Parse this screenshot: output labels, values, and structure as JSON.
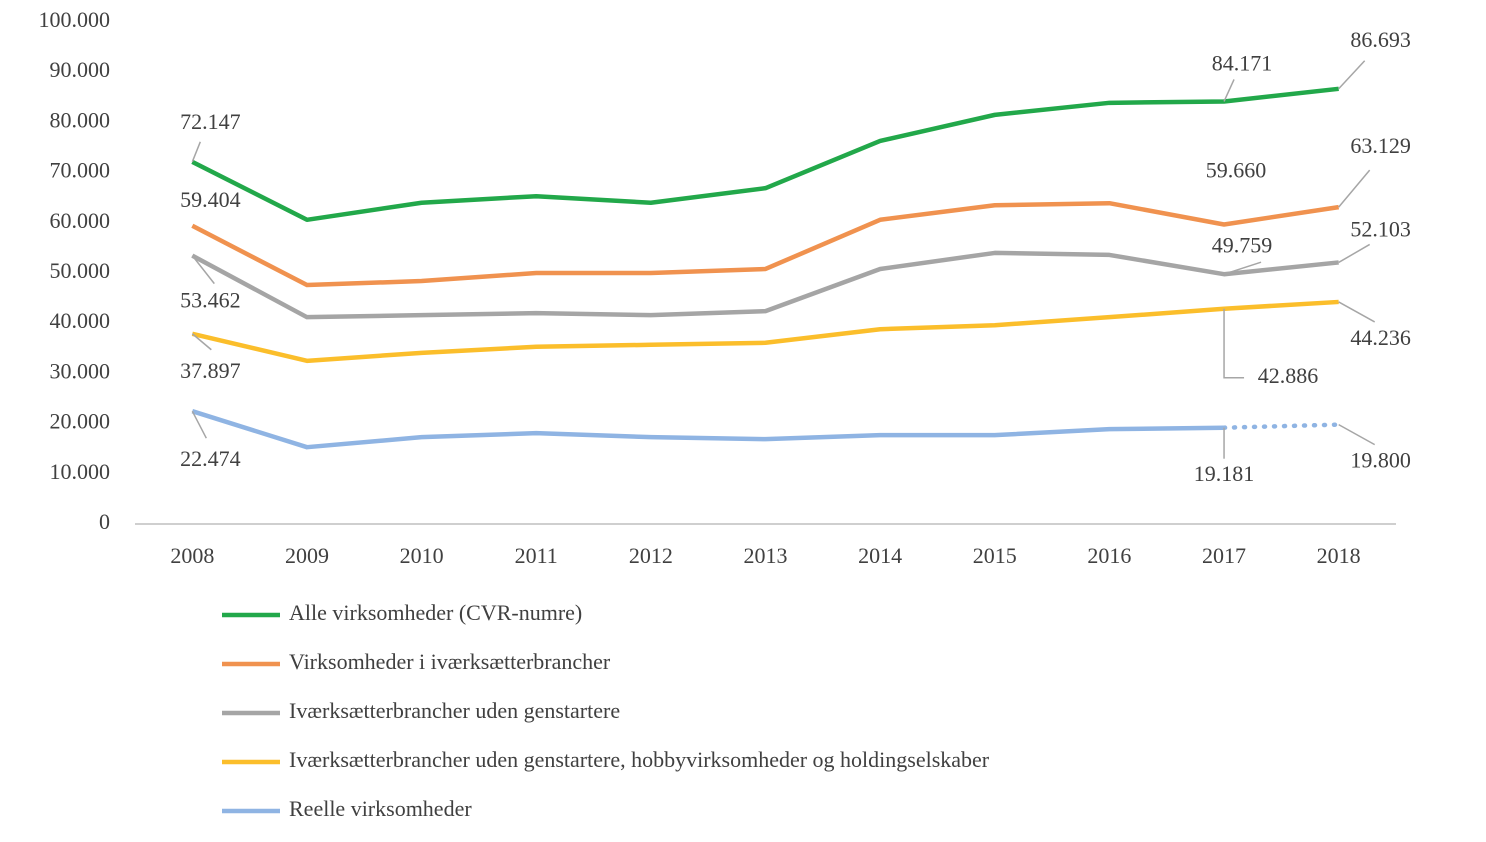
{
  "chart_data": {
    "type": "line",
    "categories": [
      "2008",
      "2009",
      "2010",
      "2011",
      "2012",
      "2013",
      "2014",
      "2015",
      "2016",
      "2017",
      "2018"
    ],
    "ylim": [
      0,
      100000
    ],
    "yticks": [
      0,
      {
        "value": 10000,
        "label": "10.000"
      },
      {
        "value": 20000,
        "label": "20.000"
      },
      {
        "value": 30000,
        "label": "30.000"
      },
      {
        "value": 40000,
        "label": "40.000"
      },
      {
        "value": 50000,
        "label": "50.000"
      },
      {
        "value": 60000,
        "label": "60.000"
      },
      {
        "value": 70000,
        "label": "70.000"
      },
      {
        "value": 80000,
        "label": "80.000"
      },
      {
        "value": 90000,
        "label": "90.000"
      },
      {
        "value": 100000,
        "label": "100.000"
      }
    ],
    "grid": false,
    "legend": "bottom",
    "series": [
      {
        "name": "Alle virksomheder (CVR-numre)",
        "color": "#22a84a",
        "values": [
          72147,
          60600,
          64000,
          65300,
          64000,
          66900,
          76300,
          81500,
          83900,
          84171,
          86693
        ],
        "value_labels": [
          "72.147",
          null,
          null,
          null,
          null,
          null,
          null,
          null,
          null,
          "84.171",
          "86.693"
        ]
      },
      {
        "name": "Virksomheder i iværksætterbrancher",
        "color": "#f0924f",
        "values": [
          59404,
          47600,
          48400,
          50000,
          50000,
          50800,
          60600,
          63500,
          63900,
          59660,
          63129
        ],
        "value_labels": [
          "59.404",
          null,
          null,
          null,
          null,
          null,
          null,
          null,
          null,
          "59.660",
          "63.129"
        ]
      },
      {
        "name": "Iværksætterbrancher uden genstartere",
        "color": "#a5a5a5",
        "values": [
          53462,
          41200,
          41600,
          42000,
          41600,
          42400,
          50800,
          54000,
          53600,
          49759,
          52103
        ],
        "value_labels": [
          "53.462",
          null,
          null,
          null,
          null,
          null,
          null,
          null,
          null,
          "49.759",
          "52.103"
        ]
      },
      {
        "name": "Iværksætterbrancher uden genstartere, hobbyvirksomheder og holdingselskaber",
        "color": "#fbbe2b",
        "values": [
          37897,
          32500,
          34100,
          35300,
          35700,
          36100,
          38800,
          39600,
          41200,
          42886,
          44236
        ],
        "value_labels": [
          "37.897",
          null,
          null,
          null,
          null,
          null,
          null,
          null,
          null,
          "42.886",
          "44.236"
        ]
      },
      {
        "name": "Reelle virksomheder",
        "color": "#8fb4e3",
        "values": [
          22474,
          15300,
          17300,
          18100,
          17300,
          16900,
          17700,
          17700,
          18900,
          19181,
          19800
        ],
        "value_labels": [
          "22.474",
          null,
          null,
          null,
          null,
          null,
          null,
          null,
          null,
          "19.181",
          "19.800"
        ],
        "last_segment_style": "dotted"
      }
    ]
  }
}
